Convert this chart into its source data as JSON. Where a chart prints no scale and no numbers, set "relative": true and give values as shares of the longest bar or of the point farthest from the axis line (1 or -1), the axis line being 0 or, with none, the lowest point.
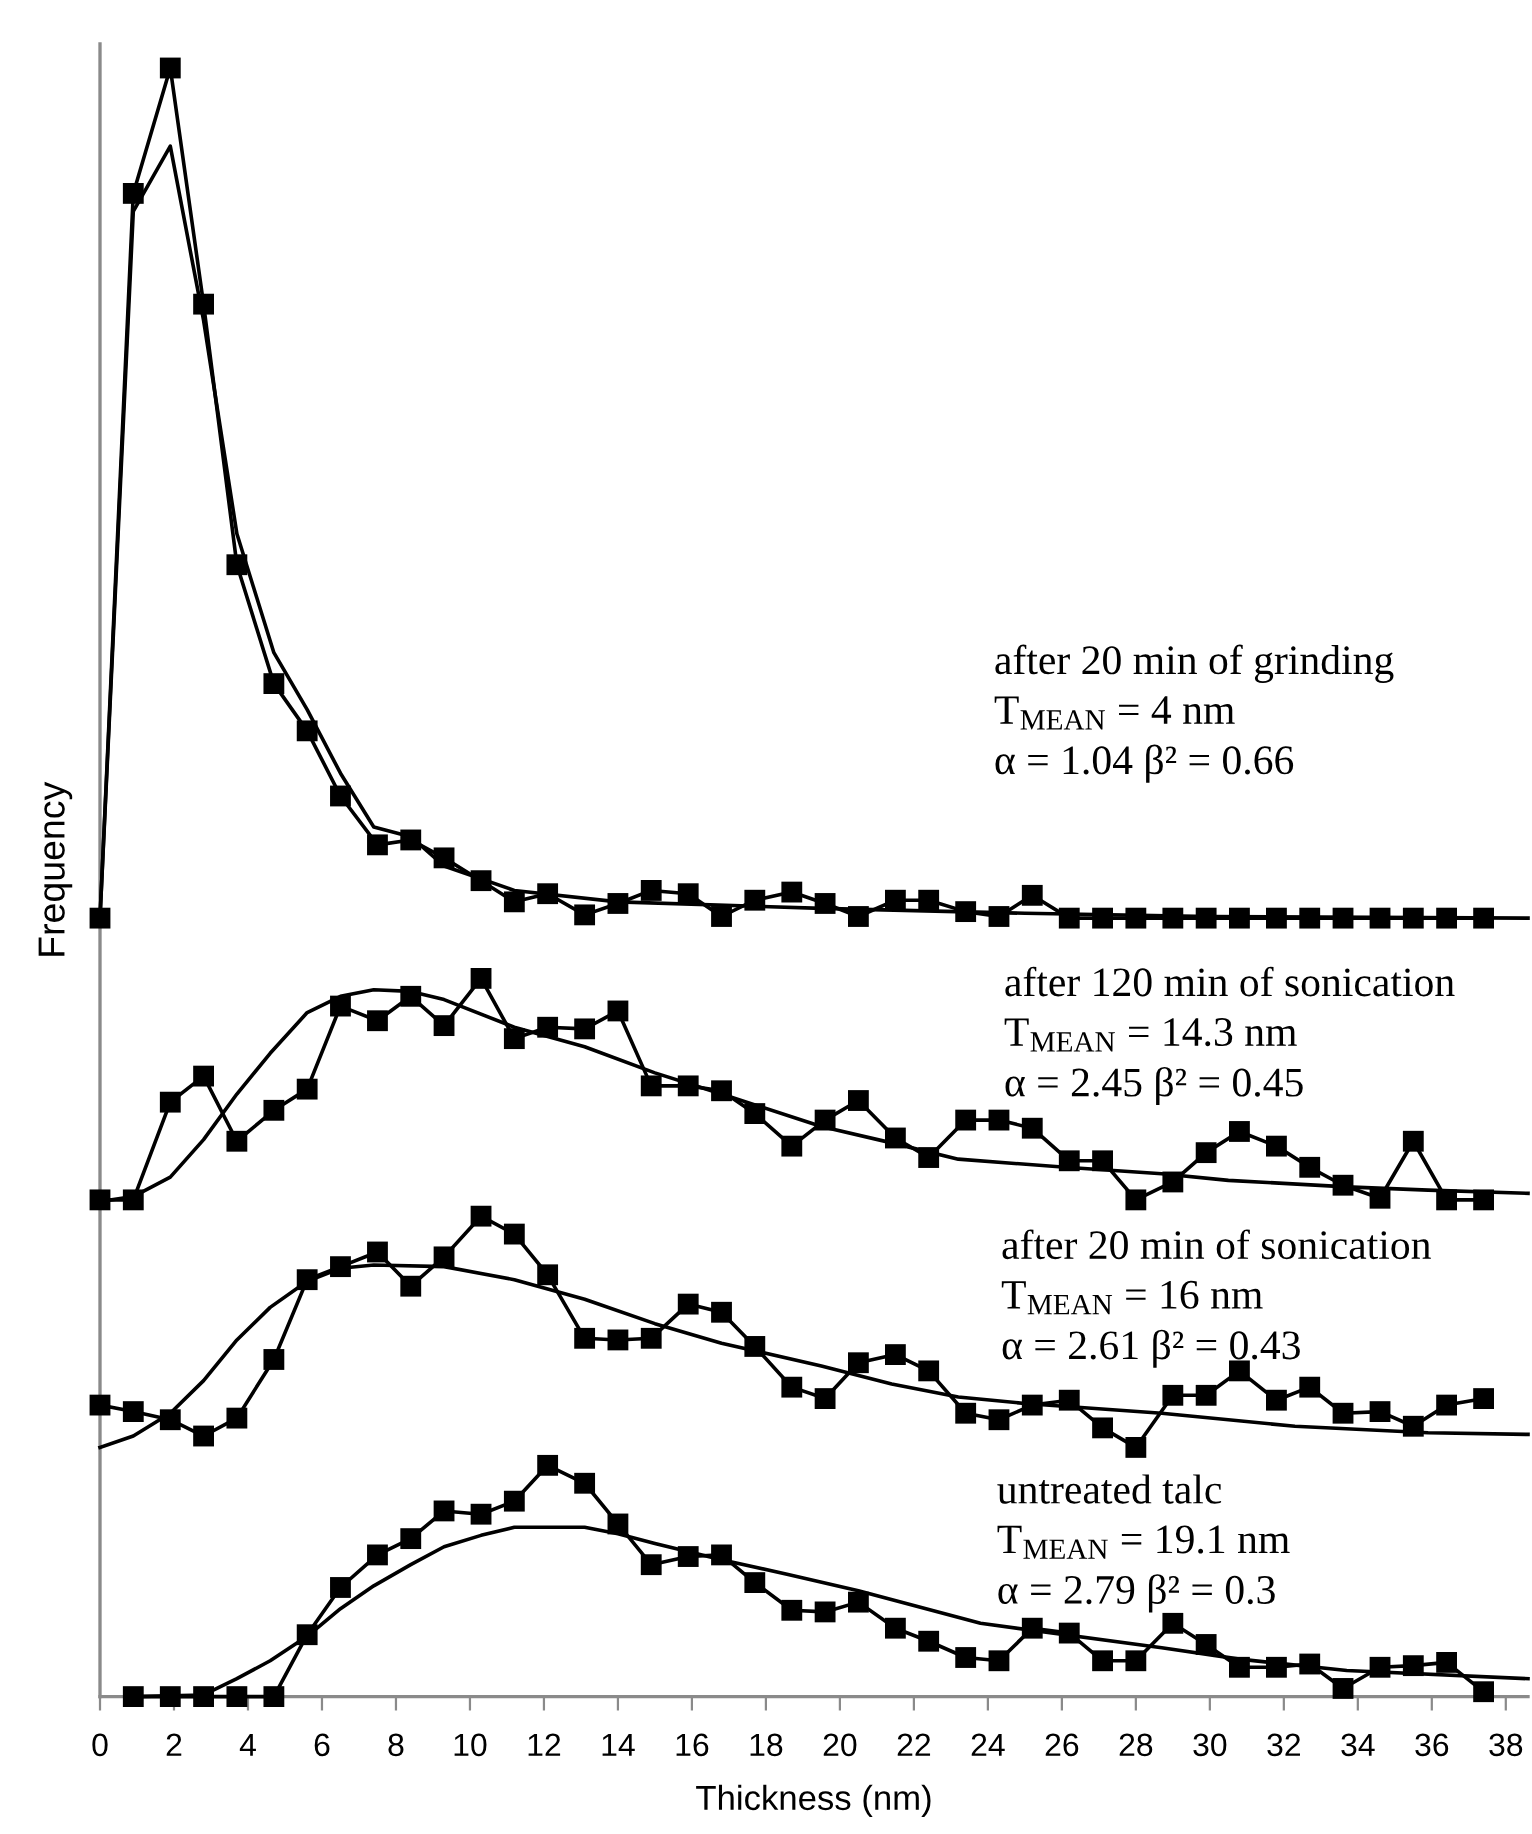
{
  "chart_data": {
    "type": "line",
    "xlabel": "Thickness (nm)",
    "ylabel": "Frequency",
    "relative": true,
    "x": [
      0,
      0.9,
      1.9,
      2.8,
      3.7,
      4.7,
      5.6,
      6.5,
      7.5,
      8.4,
      9.3,
      10.3,
      11.2,
      12.1,
      13.1,
      14.0,
      14.9,
      15.9,
      16.8,
      17.7,
      18.7,
      19.6,
      20.5,
      21.5,
      22.4,
      23.4,
      24.3,
      25.2,
      26.2,
      27.1,
      28.0,
      29.0,
      29.9,
      30.8,
      31.8,
      32.7,
      33.6,
      34.6,
      35.5,
      36.4,
      37.4
    ],
    "xlim": [
      0,
      38.6
    ],
    "xticks": [
      0,
      2,
      4,
      6,
      8,
      10,
      12,
      14,
      16,
      18,
      20,
      22,
      24,
      26,
      28,
      30,
      32,
      34,
      36,
      38
    ],
    "series": [
      {
        "color": "#000000",
        "marker": "square",
        "values": [
          0.478,
          0.923,
          1,
          0.855,
          0.695,
          0.622,
          0.593,
          0.553,
          0.523,
          0.526,
          0.515,
          0.501,
          0.488,
          0.493,
          0.48,
          0.487,
          0.495,
          0.493,
          0.479,
          0.489,
          0.494,
          0.487,
          0.479,
          0.489,
          0.489,
          0.482,
          0.479,
          0.492,
          0.478,
          0.478,
          0.478,
          0.478,
          0.478,
          0.478,
          0.478,
          0.478,
          0.478,
          0.478,
          0.478,
          0.478,
          0.478
        ]
      },
      {
        "color": "#000000",
        "marker": "none",
        "x": [
          0,
          0.9,
          1.9,
          2.8,
          3.7,
          4.7,
          5.6,
          6.5,
          7.4,
          8.4,
          9.3,
          11.2,
          14.0,
          19.5,
          25,
          30,
          38.6
        ],
        "values": [
          0.478,
          0.912,
          0.952,
          0.845,
          0.714,
          0.641,
          0.606,
          0.567,
          0.534,
          0.528,
          0.51,
          0.495,
          0.488,
          0.484,
          0.481,
          0.479,
          0.478
        ]
      },
      {
        "color": "#000000",
        "marker": "square",
        "values": [
          0.305,
          0.305,
          0.365,
          0.381,
          0.341,
          0.36,
          0.373,
          0.424,
          0.415,
          0.43,
          0.412,
          0.441,
          0.404,
          0.411,
          0.41,
          0.421,
          0.375,
          0.375,
          0.372,
          0.358,
          0.338,
          0.354,
          0.366,
          0.343,
          0.331,
          0.354,
          0.354,
          0.349,
          0.329,
          0.329,
          0.305,
          0.316,
          0.334,
          0.347,
          0.338,
          0.325,
          0.314,
          0.306,
          0.341,
          0.305,
          0.305
        ]
      },
      {
        "color": "#000000",
        "marker": "none",
        "x": [
          0,
          0.9,
          1.9,
          2.8,
          3.7,
          4.6,
          5.6,
          6.5,
          7.4,
          8.4,
          9.3,
          11.2,
          13.1,
          15.0,
          16.8,
          19.5,
          21.4,
          23.2,
          26.1,
          28.7,
          30.5,
          33.7,
          35.9,
          38.6
        ],
        "values": [
          0.304,
          0.307,
          0.319,
          0.342,
          0.37,
          0.395,
          0.42,
          0.43,
          0.434,
          0.433,
          0.428,
          0.411,
          0.399,
          0.383,
          0.37,
          0.35,
          0.34,
          0.33,
          0.325,
          0.321,
          0.317,
          0.313,
          0.311,
          0.309
        ]
      },
      {
        "color": "#000000",
        "marker": "square",
        "values": [
          0.179,
          0.175,
          0.17,
          0.16,
          0.171,
          0.207,
          0.256,
          0.264,
          0.273,
          0.252,
          0.27,
          0.295,
          0.284,
          0.259,
          0.22,
          0.219,
          0.22,
          0.241,
          0.236,
          0.215,
          0.19,
          0.183,
          0.205,
          0.21,
          0.2,
          0.174,
          0.17,
          0.179,
          0.182,
          0.165,
          0.153,
          0.185,
          0.185,
          0.2,
          0.182,
          0.19,
          0.174,
          0.175,
          0.166,
          0.179,
          0.183
        ]
      },
      {
        "color": "#000000",
        "marker": "none",
        "x": [
          0,
          0.9,
          1.9,
          2.8,
          3.7,
          4.6,
          5.6,
          6.5,
          7.4,
          9.3,
          11.2,
          13.1,
          15.0,
          16.8,
          19.5,
          21.4,
          23.2,
          25.0,
          28.7,
          32.3,
          35.9,
          38.6
        ],
        "values": [
          0.153,
          0.16,
          0.174,
          0.194,
          0.219,
          0.239,
          0.255,
          0.263,
          0.265,
          0.264,
          0.256,
          0.244,
          0.229,
          0.217,
          0.203,
          0.192,
          0.184,
          0.18,
          0.174,
          0.166,
          0.162,
          0.161
        ]
      },
      {
        "color": "#000000",
        "marker": "square",
        "values": [
          null,
          0,
          0,
          0,
          0,
          0,
          0.038,
          0.067,
          0.087,
          0.097,
          0.114,
          0.112,
          0.12,
          0.142,
          0.131,
          0.106,
          0.081,
          0.086,
          0.087,
          0.07,
          0.053,
          0.052,
          0.058,
          0.042,
          0.034,
          0.024,
          0.022,
          0.042,
          0.039,
          0.022,
          0.022,
          0.045,
          0.032,
          0.018,
          0.018,
          0.02,
          0.005,
          0.018,
          0.019,
          0.021,
          0.003
        ]
      },
      {
        "color": "#000000",
        "marker": "none",
        "x": [
          0.9,
          2.8,
          3.7,
          4.6,
          5.6,
          6.5,
          7.4,
          8.4,
          9.3,
          10.3,
          11.2,
          12.2,
          13.1,
          14.0,
          15.0,
          16.8,
          18.6,
          20.5,
          23.8,
          28.7,
          30.8,
          33.7,
          38.6
        ],
        "values": [
          0,
          0.001,
          0.011,
          0.022,
          0.037,
          0.054,
          0.068,
          0.081,
          0.092,
          0.099,
          0.104,
          0.104,
          0.104,
          0.1,
          0.094,
          0.084,
          0.075,
          0.065,
          0.045,
          0.03,
          0.023,
          0.016,
          0.011
        ]
      }
    ],
    "annotations": [
      "after 20 min of grinding",
      "T$_{MEAN}$ = 4 nm",
      "α = 1.04 β² = 0.66",
      "after 120 min of sonication",
      "T$_{MEAN}$ = 14.3 nm",
      "α = 2.45 β² = 0.45",
      "after 20 min of sonication",
      "T$_{MEAN}$ = 16 nm",
      "α = 2.61 β² = 0.43",
      "untreated talc",
      "T$_{MEAN}$ = 19.1 nm",
      "α = 2.79 β² = 0.3"
    ]
  }
}
